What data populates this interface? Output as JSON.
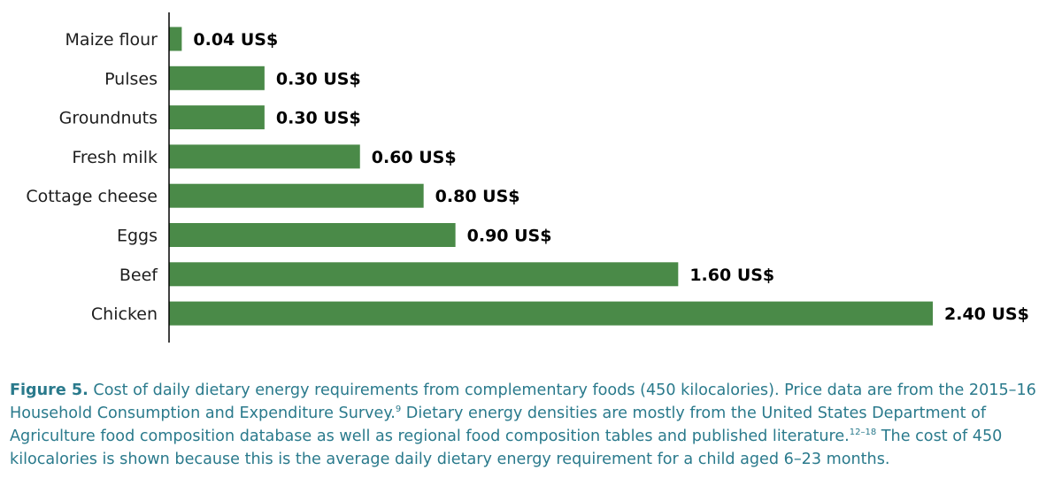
{
  "colors": {
    "bar": "#4a8a48",
    "axis": "#000000",
    "caption": "#2a7a8c"
  },
  "chart_data": {
    "type": "bar",
    "orientation": "horizontal",
    "categories": [
      "Maize flour",
      "Pulses",
      "Groundnuts",
      "Fresh milk",
      "Cottage cheese",
      "Eggs",
      "Beef",
      "Chicken"
    ],
    "values": [
      0.04,
      0.3,
      0.3,
      0.6,
      0.8,
      0.9,
      1.6,
      2.4
    ],
    "data_labels": [
      "0.04 US$",
      "0.30 US$",
      "0.30 US$",
      "0.60 US$",
      "0.80 US$",
      "0.90 US$",
      "1.60 US$",
      "2.40 US$"
    ],
    "xlim": [
      0,
      2.4
    ],
    "grid": false,
    "legend": "none"
  },
  "caption": {
    "figure_label": "Figure 5.",
    "text_1": " Cost of daily dietary energy requirements from complementary foods (450 kilocalories). Price data are from the 2015–16 Household Consumption and Expenditure Survey.",
    "ref_1": "9",
    "text_2": " Dietary energy densities are mostly from the United States Department of Agriculture food composition database as well as regional food composition tables and published literature.",
    "ref_2": "12–18",
    "text_3": " The cost of 450 kilocalories is shown because this is the average daily dietary energy requirement for a child aged 6–23 months."
  }
}
